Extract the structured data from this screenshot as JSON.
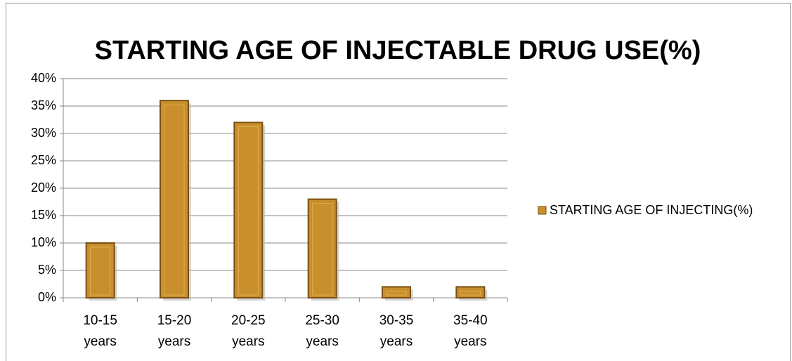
{
  "chart_data": {
    "type": "bar",
    "title": "STARTING AGE OF INJECTABLE DRUG USE(%)",
    "categories": [
      "10-15 years",
      "15-20 years",
      "20-25 years",
      "25-30 years",
      "30-35 years",
      "35-40 years"
    ],
    "series": [
      {
        "name": "STARTING AGE OF INJECTING(%)",
        "color": "#c88f2c",
        "values": [
          10,
          36,
          32,
          18,
          2,
          2
        ]
      }
    ],
    "ylim": [
      0,
      40
    ],
    "yticks": [
      {
        "value": 0,
        "label": "0%"
      },
      {
        "value": 5,
        "label": "5%"
      },
      {
        "value": 10,
        "label": "10%"
      },
      {
        "value": 15,
        "label": "15%"
      },
      {
        "value": 20,
        "label": "20%"
      },
      {
        "value": 25,
        "label": "25%"
      },
      {
        "value": 30,
        "label": "30%"
      },
      {
        "value": 35,
        "label": "35%"
      },
      {
        "value": 40,
        "label": "40%"
      }
    ],
    "grid": true,
    "legend": "right"
  }
}
